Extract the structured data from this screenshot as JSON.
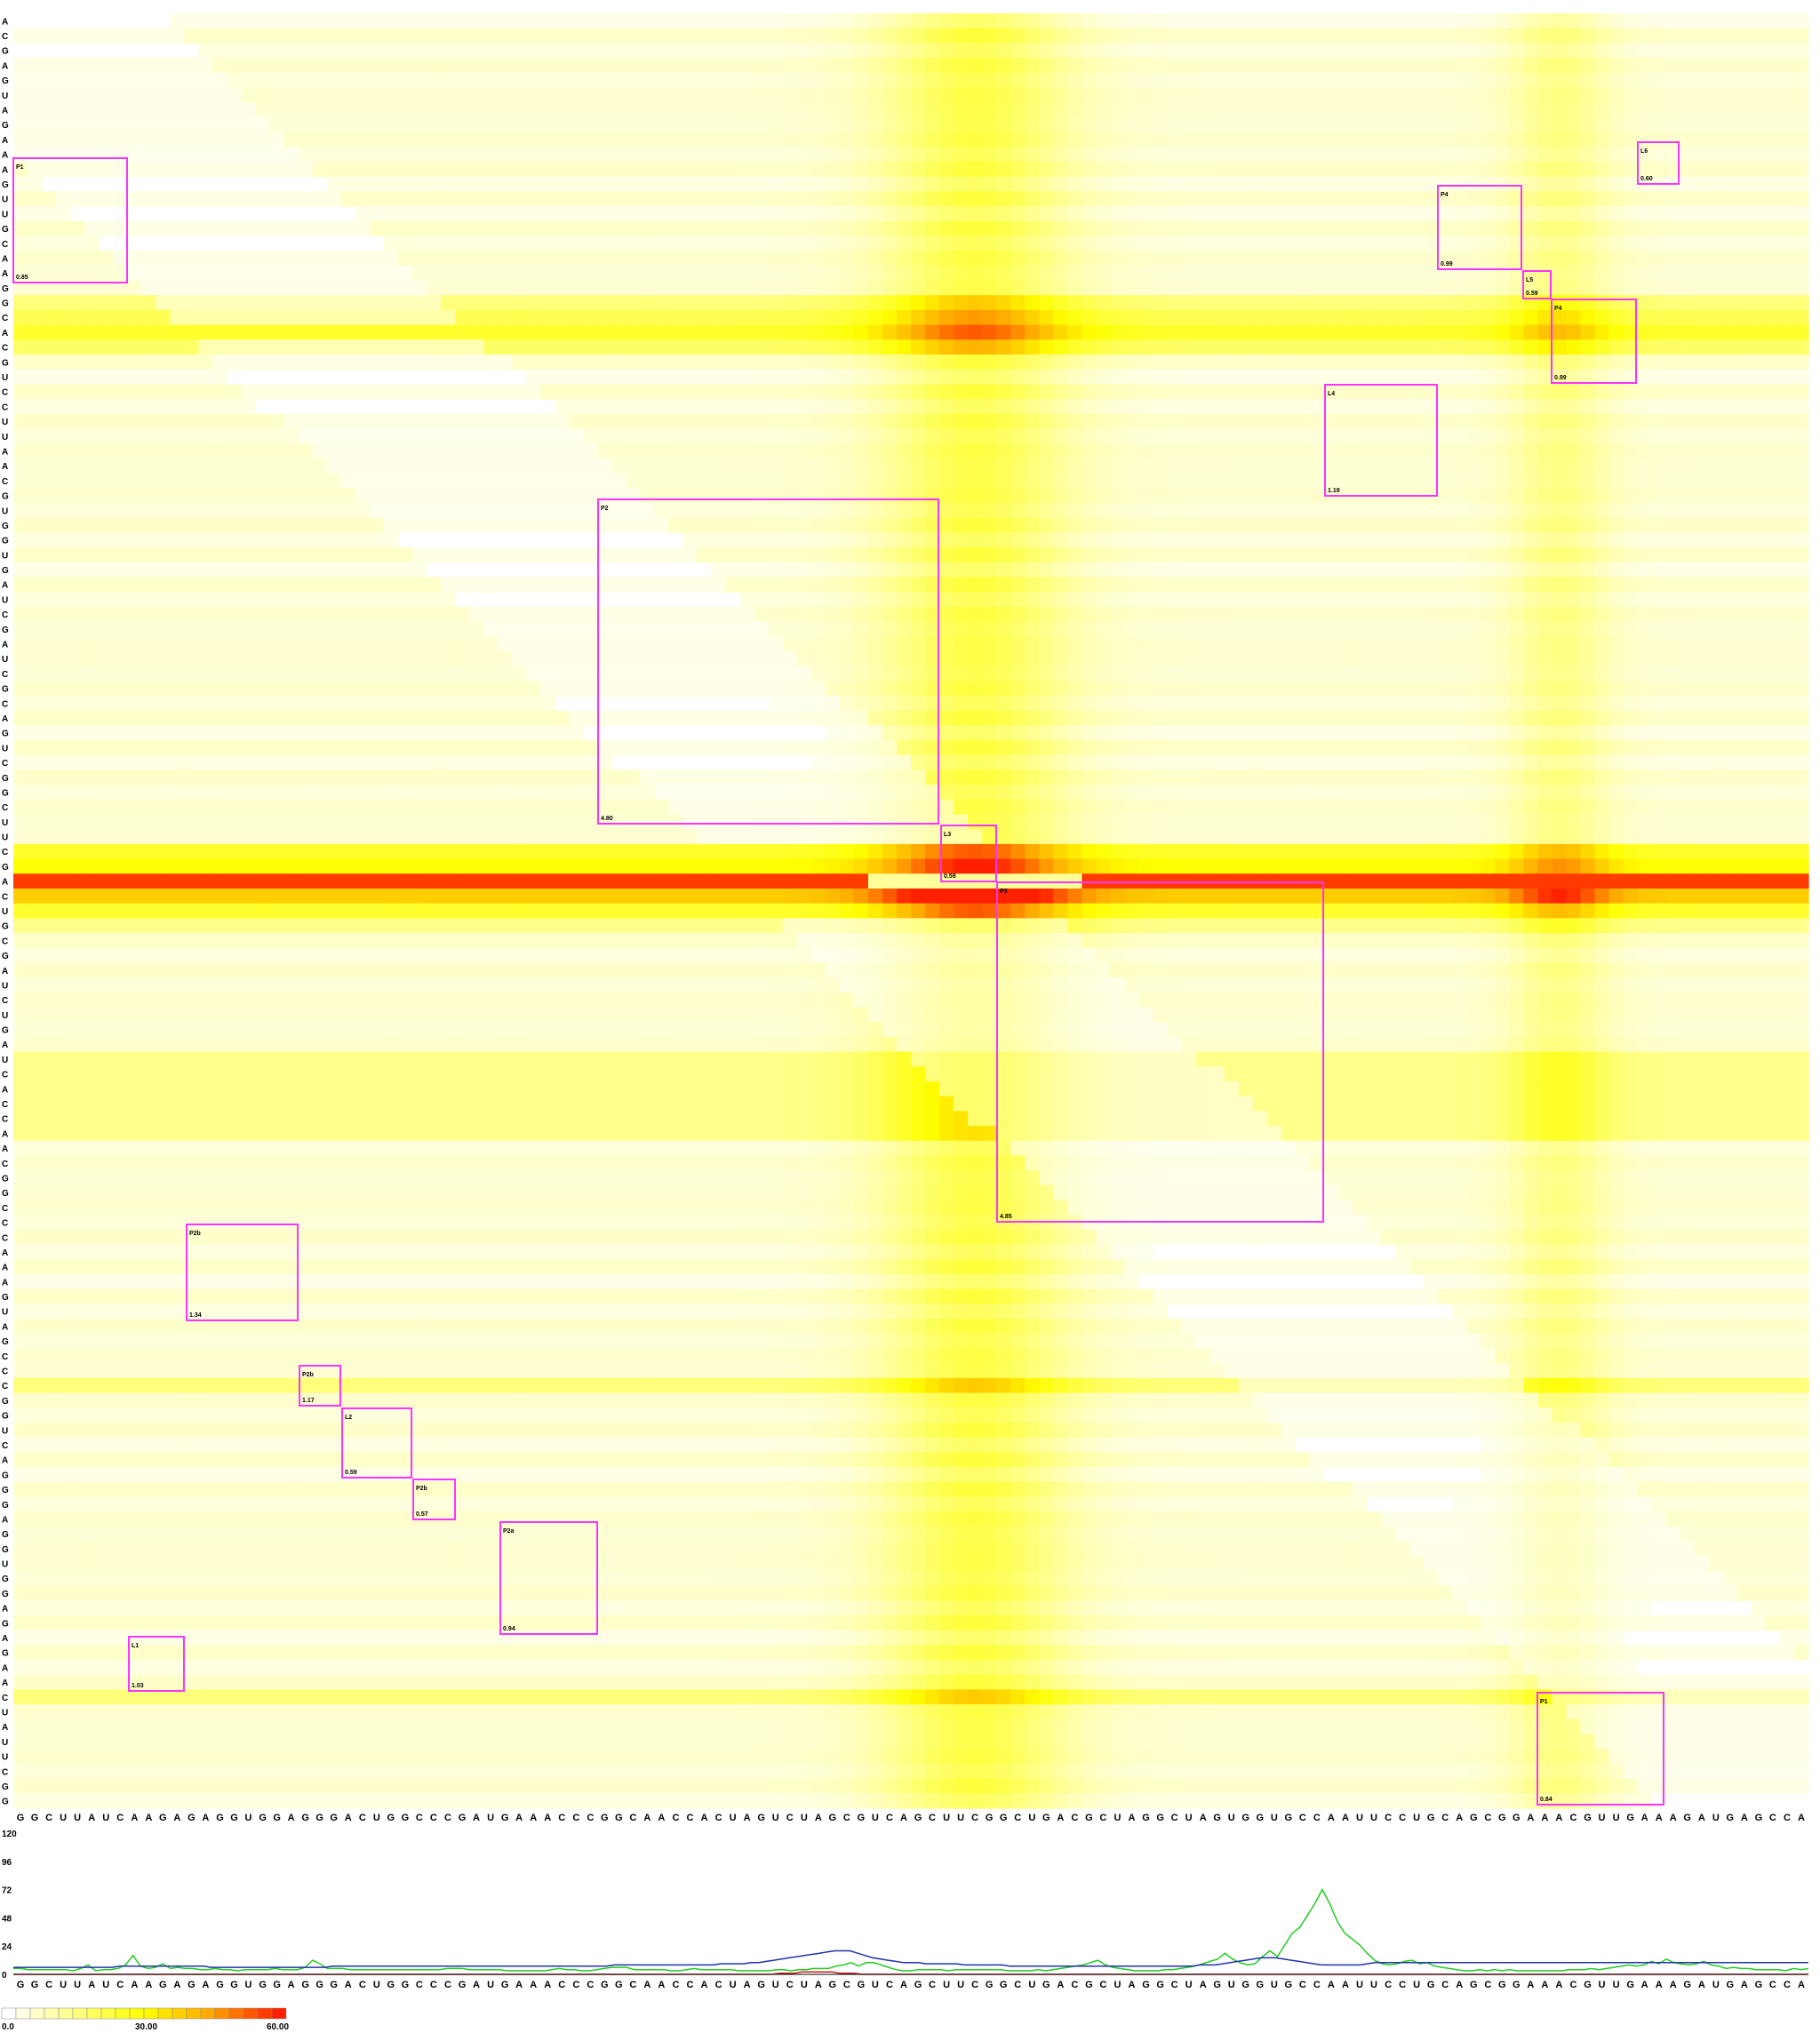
{
  "chart_data": [
    {
      "type": "heatmap",
      "title": "",
      "y_sequence": "ACGAGUAGAAAGUUGCAAGGCACGUCCUUAACGUGGUGAUCGAUCGCAGUCGGCUUCGACUGCGAUCUGAUCACCAACGGCCCAAAGUAGCCCGGUCAGGGAGGUGGAGAGAACUAUUCGG",
      "x_sequence": "GGCUUAUCAAGAGAGGUGGAGGGACUGGCCCGAUGAAACCCGGCAACCACUAGUCUAGCGUCAGCUUCGGCUGACGCUAGGCUAGUGGUGCCAAUUCCUGCAGCGGAAACGUUGAAAGAUGAGCCA",
      "color_scale": {
        "min": 0.0,
        "mid": 30.0,
        "max": 60.0,
        "labels": [
          "0.0",
          "30.00",
          "60.00"
        ],
        "colors": [
          "#ffffff",
          "#ffff00",
          "#ffa500",
          "#ff2000"
        ]
      },
      "profiles": {
        "row_peak_positions": [
          19,
          20,
          21,
          22,
          56,
          57,
          58,
          59,
          60,
          61
        ],
        "center_column_fraction": 0.5315,
        "right_column_fraction": 0.8545
      },
      "domains": [
        {
          "name": "P1",
          "value": "0.85",
          "color": "#ff33ff"
        },
        {
          "name": "P2",
          "value": "4.80",
          "color": "#ff33ff"
        },
        {
          "name": "L3",
          "value": "0.59",
          "color": "#ff33ff"
        },
        {
          "name": "P3",
          "value": "4.85",
          "color": "#ff33ff"
        },
        {
          "name": "L4",
          "value": "1.19",
          "color": "#ff33ff"
        },
        {
          "name": "P4",
          "value": "0.99",
          "color": "#ff33ff"
        },
        {
          "name": "L5",
          "value": "0.59",
          "color": "#ff33ff"
        },
        {
          "name": "P4",
          "value": "0.99",
          "color": "#ff33ff"
        },
        {
          "name": "L6",
          "value": "0.60",
          "color": "#ff33ff"
        },
        {
          "name": "P2b",
          "value": "1.34",
          "color": "#ff33ff"
        },
        {
          "name": "P2b",
          "value": "1.17",
          "color": "#ff33ff"
        },
        {
          "name": "L2",
          "value": "0.59",
          "color": "#ff33ff"
        },
        {
          "name": "P2b",
          "value": "0.57",
          "color": "#ff33ff"
        },
        {
          "name": "P2a",
          "value": "0.94",
          "color": "#ff33ff"
        },
        {
          "name": "L1",
          "value": "1.03",
          "color": "#ff33ff"
        },
        {
          "name": "P1",
          "value": "0.84",
          "color": "#ff33ff"
        }
      ]
    },
    {
      "type": "line",
      "title": "",
      "xlabel": "",
      "ylabel": "",
      "ylim": [
        0,
        120
      ],
      "yticks": [
        "0",
        "24",
        "48",
        "72",
        "96",
        "120"
      ],
      "x_sequence": "GGCUUAUCAAGAGAGGUGGAGGGACUGGCCCGAUGAAACCCGGCAACCACUAGUCUAGCGUCAGCUUCGGCUGACGCUAGGCUAGUGGUGCCAAUUCCUGCAGCGGAAACGUUGAAAGAUGAGCCA",
      "series": [
        {
          "color": "#22cc22",
          "values": [
            5,
            5,
            4,
            4,
            4,
            4,
            4,
            4,
            3,
            5,
            8,
            3,
            4,
            4,
            5,
            8,
            16,
            7,
            5,
            6,
            9,
            5,
            6,
            5,
            5,
            4,
            4,
            5,
            4,
            4,
            3,
            4,
            4,
            4,
            4,
            5,
            4,
            4,
            4,
            6,
            12,
            9,
            5,
            5,
            5,
            4,
            4,
            4,
            4,
            4,
            4,
            4,
            4,
            4,
            4,
            4,
            4,
            4,
            5,
            5,
            5,
            4,
            4,
            4,
            4,
            4,
            3,
            3,
            3,
            3,
            3,
            3,
            4,
            5,
            4,
            4,
            3,
            3,
            4,
            5,
            6,
            6,
            6,
            4,
            4,
            4,
            4,
            4,
            3,
            3,
            4,
            5,
            4,
            4,
            4,
            4,
            4,
            3,
            3,
            3,
            3,
            3,
            4,
            4,
            3,
            4,
            4,
            5,
            5,
            5,
            7,
            8,
            10,
            7,
            10,
            10,
            8,
            6,
            4,
            3,
            3,
            4,
            4,
            4,
            4,
            3,
            4,
            4,
            4,
            4,
            4,
            4,
            4,
            3,
            3,
            3,
            3,
            4,
            3,
            4,
            5,
            6,
            7,
            8,
            10,
            12,
            8,
            6,
            5,
            4,
            3,
            3,
            3,
            3,
            4,
            4,
            5,
            6,
            7,
            9,
            11,
            13,
            18,
            13,
            10,
            8,
            9,
            15,
            20,
            15,
            25,
            35,
            40,
            50,
            60,
            72,
            60,
            45,
            35,
            30,
            25,
            18,
            12,
            9,
            8,
            9,
            11,
            12,
            9,
            10,
            7,
            6,
            5,
            4,
            3,
            3,
            4,
            3,
            4,
            3,
            4,
            3,
            3,
            3,
            3,
            3,
            3,
            3,
            4,
            4,
            4,
            5,
            4,
            5,
            6,
            7,
            8,
            7,
            8,
            11,
            9,
            13,
            10,
            9,
            8,
            9,
            11,
            8,
            7,
            5,
            6,
            5,
            5,
            4,
            4,
            4,
            4,
            3,
            5,
            4,
            5
          ]
        },
        {
          "color": "#2233aa",
          "values": [
            6,
            6,
            6,
            6,
            6,
            6,
            6,
            6,
            6,
            6,
            6,
            6,
            6,
            6,
            7,
            7,
            7,
            7,
            7,
            7,
            7,
            7,
            7,
            7,
            7,
            7,
            6,
            6,
            6,
            6,
            6,
            6,
            6,
            6,
            6,
            6,
            6,
            6,
            6,
            6,
            6,
            6,
            7,
            7,
            7,
            7,
            7,
            7,
            7,
            7,
            7,
            7,
            7,
            7,
            7,
            7,
            7,
            7,
            7,
            7,
            7,
            7,
            7,
            7,
            7,
            7,
            7,
            7,
            7,
            7,
            7,
            7,
            7,
            7,
            7,
            7,
            7,
            7,
            7,
            8,
            8,
            8,
            8,
            8,
            8,
            8,
            8,
            8,
            8,
            8,
            8,
            8,
            8,
            9,
            9,
            9,
            9,
            10,
            10,
            11,
            12,
            13,
            14,
            15,
            16,
            17,
            18,
            19,
            20,
            20,
            20,
            18,
            16,
            14,
            13,
            12,
            11,
            10,
            10,
            10,
            9,
            9,
            9,
            9,
            9,
            8,
            8,
            8,
            8,
            8,
            8,
            7,
            7,
            7,
            7,
            7,
            7,
            7,
            7,
            7,
            7,
            7,
            7,
            7,
            7,
            7,
            7,
            7,
            7,
            7,
            7,
            7,
            7,
            7,
            7,
            7,
            8,
            8,
            8,
            9,
            10,
            11,
            12,
            13,
            14,
            14,
            14,
            13,
            12,
            11,
            10,
            9,
            8,
            8,
            8,
            8,
            8,
            8,
            9,
            10,
            10,
            10,
            10,
            10,
            10,
            10,
            10,
            10,
            10,
            10,
            10,
            10,
            10,
            10,
            10,
            10,
            10,
            10,
            10,
            10,
            10,
            10,
            10,
            10,
            10,
            10,
            10,
            10,
            10,
            10,
            10,
            10,
            10,
            10,
            10,
            10,
            10,
            10,
            10,
            10,
            10,
            10,
            10,
            10,
            10,
            10,
            10,
            10,
            10,
            10,
            10,
            10,
            10,
            10,
            10,
            10,
            10
          ]
        },
        {
          "color": "#cc2222",
          "values": [
            0,
            0,
            0,
            0,
            0,
            0,
            0,
            0,
            0,
            0,
            0,
            0,
            0,
            0,
            0,
            0,
            0,
            0,
            0,
            0,
            0,
            0,
            0,
            0,
            0,
            0,
            0,
            0,
            0,
            0,
            0,
            0,
            0,
            0,
            0,
            0,
            0,
            0,
            0,
            0,
            0,
            0,
            0,
            0,
            0,
            0,
            0,
            0,
            0,
            0,
            0,
            0,
            0,
            0,
            0,
            0,
            0,
            0,
            0,
            0,
            0,
            0,
            0,
            0,
            0,
            0,
            0,
            0,
            0,
            0,
            0,
            0,
            0,
            0,
            0,
            0,
            0,
            0,
            0,
            0,
            0,
            0,
            0,
            0,
            0,
            0,
            0,
            0,
            0,
            0,
            0,
            0,
            0,
            0,
            0,
            0,
            0,
            0,
            0,
            0,
            0,
            0,
            1,
            1,
            1,
            2,
            2,
            2,
            2,
            2,
            1,
            1,
            1,
            0,
            0,
            0,
            0,
            0,
            0,
            0,
            0,
            0,
            0,
            0,
            0,
            0,
            0,
            0,
            0,
            0,
            0,
            0,
            0,
            0,
            0,
            0,
            0,
            0,
            0,
            0,
            0,
            0,
            0,
            0,
            0,
            0,
            0,
            0,
            0,
            0,
            0,
            0,
            0,
            0,
            0,
            0,
            0,
            0,
            0,
            0,
            0,
            0,
            0,
            0,
            0,
            0,
            0,
            0,
            0,
            0,
            0,
            0,
            0,
            0,
            0,
            0,
            0,
            0,
            0,
            0,
            0,
            0,
            0,
            0,
            0,
            0,
            0,
            0,
            0,
            0,
            0,
            0,
            0,
            0,
            0,
            0,
            0,
            0,
            0,
            0,
            0,
            0,
            0,
            0,
            0,
            0,
            0,
            0,
            0,
            0,
            0,
            0,
            0,
            0,
            0,
            0,
            0,
            0,
            0,
            0,
            0,
            0,
            0,
            0,
            0,
            0,
            0,
            0,
            0,
            0,
            0,
            0,
            0,
            0,
            0,
            0,
            0,
            0,
            0,
            0
          ]
        }
      ]
    }
  ]
}
